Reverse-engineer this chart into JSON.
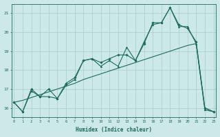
{
  "bg_color": "#cce8e8",
  "grid_color": "#aacccc",
  "line_color": "#1a6b5a",
  "x_min": 0,
  "x_max": 23,
  "y_min": 15.5,
  "y_max": 21.5,
  "y_ticks": [
    16,
    17,
    18,
    19,
    20,
    21
  ],
  "x_ticks": [
    0,
    1,
    2,
    3,
    4,
    5,
    6,
    7,
    8,
    9,
    10,
    11,
    12,
    13,
    14,
    15,
    16,
    17,
    18,
    19,
    20,
    21,
    22,
    23
  ],
  "xlabel": "Humidex (Indice chaleur)",
  "line1_x": [
    0,
    1,
    2,
    3,
    4,
    5,
    6,
    7,
    8,
    9,
    10,
    11,
    12,
    13,
    14,
    15,
    16,
    17,
    18,
    19,
    20,
    21,
    22,
    23
  ],
  "line1_y": [
    16.3,
    15.8,
    16.9,
    16.6,
    16.6,
    16.5,
    17.2,
    17.5,
    18.5,
    18.6,
    18.2,
    18.5,
    18.2,
    19.2,
    18.5,
    19.5,
    20.4,
    20.5,
    21.3,
    20.3,
    20.3,
    19.4,
    15.9,
    15.8
  ],
  "line2_x": [
    0,
    1,
    2,
    3,
    4,
    5,
    6,
    7,
    8,
    9,
    10,
    11,
    12,
    13,
    14,
    15,
    16,
    17,
    18,
    19,
    20,
    21,
    22,
    23
  ],
  "line2_y": [
    16.3,
    15.8,
    17.0,
    16.6,
    17.0,
    16.5,
    17.3,
    17.6,
    18.5,
    18.6,
    18.4,
    18.6,
    18.8,
    18.8,
    18.5,
    19.4,
    20.5,
    20.5,
    21.3,
    20.4,
    20.2,
    19.5,
    16.0,
    15.8
  ],
  "line3_x": [
    0,
    1,
    2,
    3,
    4,
    5,
    6,
    7,
    8,
    9,
    10,
    11,
    12,
    13,
    14,
    15,
    16,
    17,
    18,
    19,
    20,
    21,
    22,
    23
  ],
  "line3_y": [
    16.3,
    16.4,
    16.55,
    16.7,
    16.85,
    17.0,
    17.15,
    17.3,
    17.5,
    17.65,
    17.8,
    17.95,
    18.1,
    18.25,
    18.4,
    18.55,
    18.7,
    18.85,
    19.0,
    19.15,
    19.3,
    19.4,
    16.0,
    15.8
  ]
}
